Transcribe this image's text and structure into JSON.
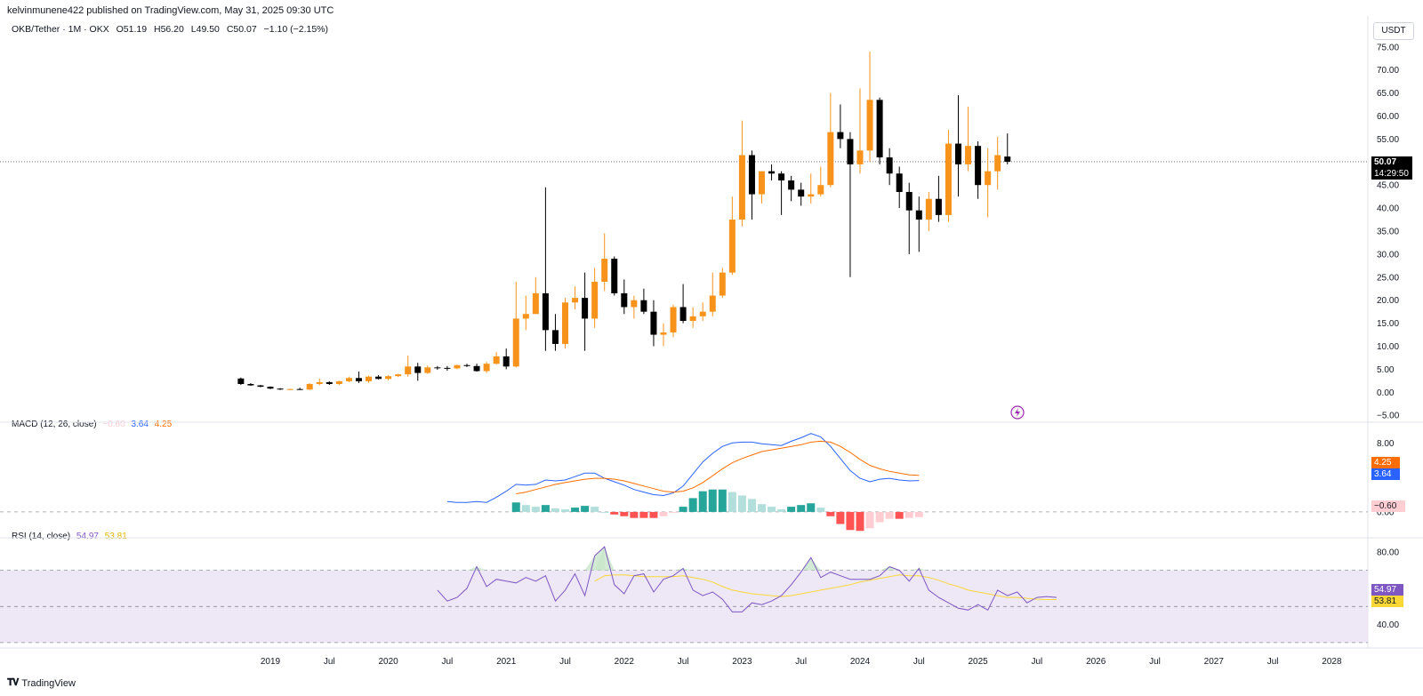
{
  "published": "kelvinmunene422 published on TradingView.com, May 31, 2025 09:30 UTC",
  "legend": {
    "symbol": "OKB/Tether · 1M · OKX",
    "open": "O51.19",
    "high": "H56.20",
    "low": "L49.50",
    "close": "C50.07",
    "change": "−1.10 (−2.15%)"
  },
  "currency": "USDT",
  "price_tag": {
    "value": "50.07",
    "countdown": "14:29:50"
  },
  "macd_legend": {
    "title": "MACD (12, 26, close)",
    "hist": "−0.60",
    "macd": "3.64",
    "signal": "4.25"
  },
  "macd_tags": {
    "signal": "4.25",
    "macd": "3.64",
    "hist": "−0.60"
  },
  "rsi_legend": {
    "title": "RSI (14, close)",
    "rsi": "54.97",
    "ma": "53.81"
  },
  "rsi_tags": {
    "rsi": "54.97",
    "ma": "53.81"
  },
  "footer": {
    "brand": "TradingView"
  },
  "colors": {
    "up": "#f7931a",
    "down": "#000000",
    "macd": "#2962ff",
    "signal": "#ff6d00",
    "hist_pos_strong": "#26a69a",
    "hist_pos_weak": "#b2dfdb",
    "hist_neg_strong": "#ff5252",
    "hist_neg_weak": "#ffcdd2",
    "rsi": "#7e57c2",
    "rsi_ma": "#fdd835",
    "rsi_band": "#ede7f6"
  },
  "chart_data": [
    {
      "type": "candlestick",
      "title": "OKB/Tether · 1M · OKX",
      "timeframe": "monthly",
      "y_ticks": [
        -5,
        0,
        5,
        10,
        15,
        20,
        25,
        30,
        35,
        40,
        45,
        50,
        55,
        60,
        65,
        70,
        75
      ],
      "ylim": [
        -6.5,
        76.5
      ],
      "x_ticks": [
        {
          "label": "2019",
          "i": 0
        },
        {
          "label": "Jul",
          "i": 6
        },
        {
          "label": "2020",
          "i": 12
        },
        {
          "label": "Jul",
          "i": 18
        },
        {
          "label": "2021",
          "i": 24
        },
        {
          "label": "Jul",
          "i": 30
        },
        {
          "label": "2022",
          "i": 36
        },
        {
          "label": "Jul",
          "i": 42
        },
        {
          "label": "2023",
          "i": 48
        },
        {
          "label": "Jul",
          "i": 54
        },
        {
          "label": "2024",
          "i": 60
        },
        {
          "label": "Jul",
          "i": 66
        },
        {
          "label": "2025",
          "i": 72
        },
        {
          "label": "Jul",
          "i": 78
        },
        {
          "label": "2026",
          "i": 84
        },
        {
          "label": "Jul",
          "i": 90
        },
        {
          "label": "2027",
          "i": 96
        },
        {
          "label": "Jul",
          "i": 102
        },
        {
          "label": "2028",
          "i": 108
        }
      ],
      "first_index": -3,
      "last_price": 50.07,
      "ohlc": [
        [
          3.0,
          3.2,
          1.6,
          1.8
        ],
        [
          1.8,
          2.0,
          1.4,
          1.5
        ],
        [
          1.5,
          1.6,
          1.1,
          1.2
        ],
        [
          1.2,
          1.3,
          0.7,
          0.8
        ],
        [
          0.8,
          0.9,
          0.5,
          0.6
        ],
        [
          0.6,
          0.8,
          0.5,
          0.7
        ],
        [
          0.7,
          1.0,
          0.5,
          0.6
        ],
        [
          0.6,
          2.0,
          0.5,
          1.8
        ],
        [
          1.8,
          3.0,
          1.5,
          2.2
        ],
        [
          2.2,
          2.4,
          1.6,
          1.8
        ],
        [
          1.8,
          2.5,
          1.6,
          2.4
        ],
        [
          2.4,
          3.4,
          2.2,
          3.1
        ],
        [
          3.1,
          4.5,
          2.0,
          2.4
        ],
        [
          2.4,
          3.6,
          2.1,
          3.4
        ],
        [
          3.4,
          3.7,
          2.8,
          2.9
        ],
        [
          2.9,
          3.7,
          2.6,
          3.5
        ],
        [
          3.5,
          4.0,
          3.3,
          3.9
        ],
        [
          3.9,
          8.0,
          3.4,
          5.6
        ],
        [
          5.6,
          6.4,
          2.5,
          4.2
        ],
        [
          4.2,
          5.8,
          4.0,
          5.4
        ],
        [
          5.4,
          5.7,
          4.9,
          5.3
        ],
        [
          5.3,
          5.7,
          4.7,
          5.2
        ],
        [
          5.2,
          6.0,
          5.0,
          5.9
        ],
        [
          5.9,
          6.2,
          5.5,
          5.7
        ],
        [
          5.7,
          6.2,
          4.5,
          4.6
        ],
        [
          4.6,
          6.6,
          4.2,
          6.2
        ],
        [
          6.2,
          8.7,
          6.0,
          7.8
        ],
        [
          7.8,
          9.5,
          5.0,
          5.6
        ],
        [
          5.6,
          24.0,
          5.4,
          16.0
        ],
        [
          16.0,
          21.0,
          13.5,
          17.0
        ],
        [
          17.0,
          25.0,
          17.0,
          21.5
        ],
        [
          21.5,
          44.5,
          9.0,
          13.5
        ],
        [
          13.5,
          17.0,
          9.0,
          10.5
        ],
        [
          10.5,
          20.5,
          9.5,
          19.5
        ],
        [
          19.5,
          23.0,
          18.0,
          20.5
        ],
        [
          20.5,
          26.0,
          9.0,
          16.0
        ],
        [
          16.0,
          27.0,
          14.0,
          24.0
        ],
        [
          24.0,
          34.5,
          22.0,
          29.0
        ],
        [
          29.0,
          29.5,
          21.0,
          21.5
        ],
        [
          21.5,
          24.5,
          17.0,
          18.5
        ],
        [
          18.5,
          21.0,
          16.0,
          20.0
        ],
        [
          20.0,
          22.5,
          17.0,
          17.5
        ],
        [
          17.5,
          20.0,
          10.0,
          12.5
        ],
        [
          12.5,
          15.0,
          10.0,
          13.0
        ],
        [
          13.0,
          19.0,
          12.0,
          18.5
        ],
        [
          18.5,
          23.5,
          15.0,
          15.5
        ],
        [
          15.5,
          18.5,
          14.0,
          16.5
        ],
        [
          16.5,
          19.5,
          15.5,
          17.5
        ],
        [
          17.5,
          26.0,
          16.5,
          21.0
        ],
        [
          21.0,
          27.0,
          20.5,
          26.0
        ],
        [
          26.0,
          42.5,
          25.5,
          37.5
        ],
        [
          37.5,
          59.0,
          36.0,
          51.5
        ],
        [
          51.5,
          52.5,
          37.5,
          43.0
        ],
        [
          43.0,
          48.0,
          41.0,
          48.0
        ],
        [
          48.0,
          49.5,
          46.0,
          47.5
        ],
        [
          47.5,
          48.0,
          38.5,
          46.0
        ],
        [
          46.0,
          47.0,
          41.5,
          44.0
        ],
        [
          44.0,
          45.5,
          40.5,
          42.5
        ],
        [
          42.5,
          47.5,
          41.0,
          43.0
        ],
        [
          43.0,
          49.0,
          42.5,
          45.0
        ],
        [
          45.0,
          65.0,
          44.5,
          56.5
        ],
        [
          56.5,
          62.5,
          53.0,
          55.0
        ],
        [
          55.0,
          56.5,
          25.0,
          49.5
        ],
        [
          49.5,
          66.0,
          47.5,
          52.5
        ],
        [
          52.5,
          74.0,
          50.0,
          63.5
        ],
        [
          63.5,
          64.0,
          49.5,
          51.0
        ],
        [
          51.0,
          53.0,
          45.0,
          47.5
        ],
        [
          47.5,
          49.0,
          40.0,
          43.5
        ],
        [
          43.5,
          45.5,
          30.0,
          39.5
        ],
        [
          39.5,
          42.5,
          30.5,
          37.5
        ],
        [
          37.5,
          43.5,
          35.0,
          42.0
        ],
        [
          42.0,
          47.0,
          37.0,
          38.5
        ],
        [
          38.5,
          57.0,
          37.0,
          54.0
        ],
        [
          54.0,
          64.5,
          42.5,
          49.5
        ],
        [
          49.5,
          62.0,
          48.0,
          53.5
        ],
        [
          53.5,
          54.5,
          42.0,
          45.0
        ],
        [
          45.0,
          53.0,
          38.0,
          48.0
        ],
        [
          48.0,
          55.5,
          44.0,
          51.5
        ],
        [
          51.19,
          56.2,
          49.5,
          50.07
        ]
      ]
    },
    {
      "type": "line",
      "title": "MACD (12, 26, close)",
      "y_ticks": [
        8.0,
        0.0
      ],
      "ylim": [
        -3.0,
        10.2
      ],
      "first_index": 18,
      "series": [
        {
          "name": "macd",
          "values": [
            1.2,
            1.1,
            1.1,
            1.2,
            1.1,
            1.7,
            2.4,
            3.2,
            3.1,
            3.2,
            3.7,
            3.6,
            3.7,
            4.1,
            4.5,
            4.5,
            3.9,
            3.5,
            3.1,
            2.6,
            2.3,
            2.0,
            1.9,
            2.2,
            3.0,
            4.4,
            5.8,
            6.8,
            7.6,
            8.0,
            8.1,
            8.1,
            7.9,
            7.8,
            7.7,
            8.2,
            8.6,
            9.1,
            8.7,
            7.6,
            6.2,
            4.8,
            3.9,
            3.5,
            3.8,
            3.9,
            3.7,
            3.6,
            3.64
          ]
        },
        {
          "name": "signal",
          "values": [
            null,
            null,
            null,
            null,
            null,
            null,
            null,
            2.1,
            2.3,
            2.6,
            2.9,
            3.2,
            3.4,
            3.6,
            3.8,
            3.9,
            3.9,
            3.8,
            3.6,
            3.3,
            3.0,
            2.7,
            2.4,
            2.3,
            2.4,
            2.8,
            3.4,
            4.2,
            5.0,
            5.7,
            6.2,
            6.6,
            7.0,
            7.2,
            7.4,
            7.6,
            7.8,
            8.1,
            8.2,
            8.1,
            7.6,
            6.9,
            6.1,
            5.4,
            5.0,
            4.7,
            4.5,
            4.3,
            4.25
          ]
        },
        {
          "name": "histogram",
          "values": [
            null,
            null,
            null,
            null,
            null,
            null,
            null,
            1.1,
            0.8,
            0.6,
            0.8,
            0.4,
            0.3,
            0.5,
            0.7,
            0.6,
            0.0,
            -0.3,
            -0.5,
            -0.7,
            -0.7,
            -0.7,
            -0.5,
            -0.1,
            0.6,
            1.6,
            2.4,
            2.6,
            2.6,
            2.3,
            1.9,
            1.5,
            0.9,
            0.6,
            0.3,
            0.6,
            0.8,
            1.0,
            0.5,
            -0.5,
            -1.4,
            -2.1,
            -2.2,
            -1.9,
            -1.2,
            -0.8,
            -0.8,
            -0.7,
            -0.6
          ]
        }
      ]
    },
    {
      "type": "line",
      "title": "RSI (14, close)",
      "y_ticks": [
        80.0,
        60.0,
        40.0
      ],
      "ylim": [
        28.0,
        87.0
      ],
      "bands": [
        30,
        50,
        70
      ],
      "first_index": 5,
      "series": [
        {
          "name": "rsi",
          "values": [
            null,
            null,
            null,
            null,
            null,
            null,
            null,
            null,
            null,
            null,
            null,
            null,
            59.0,
            53.0,
            55.0,
            60.0,
            72.0,
            61.0,
            65.0,
            64.0,
            63.0,
            66.0,
            64.0,
            67.0,
            53.0,
            59.0,
            68.0,
            56.0,
            78.0,
            83.0,
            62.0,
            57.0,
            67.0,
            68.0,
            58.0,
            65.0,
            67.0,
            71.0,
            59.0,
            56.0,
            58.0,
            54.0,
            47.0,
            47.0,
            52.0,
            51.0,
            53.0,
            56.0,
            62.0,
            69.0,
            77.0,
            66.0,
            69.0,
            67.0,
            65.0,
            65.0,
            65.0,
            67.0,
            72.0,
            70.0,
            64.0,
            71.0,
            59.0,
            55.0,
            52.0,
            49.0,
            48.0,
            51.0,
            48.0,
            59.0,
            56.0,
            58.0,
            52.0,
            55.0,
            55.5,
            54.97
          ]
        },
        {
          "name": "ma",
          "values": [
            null,
            null,
            null,
            null,
            null,
            null,
            null,
            null,
            null,
            null,
            null,
            null,
            null,
            null,
            null,
            null,
            null,
            null,
            null,
            null,
            null,
            null,
            null,
            null,
            null,
            null,
            null,
            null,
            64.0,
            67.0,
            67.5,
            67.5,
            67.0,
            66.5,
            66.5,
            66.5,
            66.5,
            67.0,
            66.0,
            65.0,
            63.5,
            61.0,
            59.0,
            58.0,
            57.0,
            56.5,
            56.0,
            55.5,
            56.0,
            57.0,
            58.0,
            59.0,
            60.0,
            61.0,
            62.0,
            63.5,
            64.5,
            65.5,
            66.5,
            67.5,
            67.0,
            67.0,
            66.0,
            64.5,
            62.5,
            61.0,
            59.0,
            58.0,
            57.0,
            56.0,
            55.0,
            55.0,
            54.5,
            54.0,
            53.8,
            53.81
          ]
        }
      ]
    }
  ]
}
